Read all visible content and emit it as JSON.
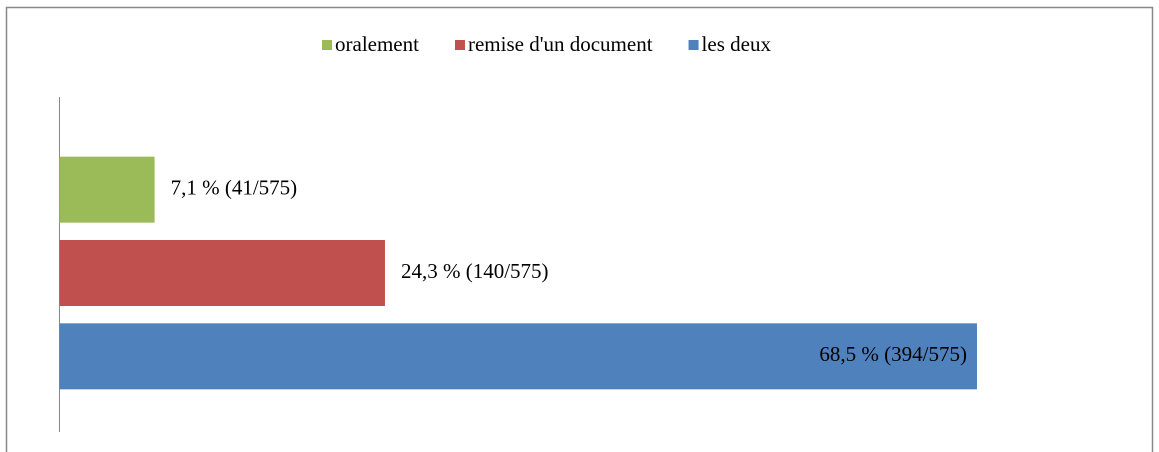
{
  "chart_data": {
    "type": "bar",
    "orientation": "horizontal",
    "series": [
      {
        "name": "oralement",
        "color": "#9bbb59",
        "values": [
          7.1
        ],
        "value_labels": [
          "7,1 % (41/575)"
        ]
      },
      {
        "name": "remise d'un document",
        "color": "#c0504d",
        "values": [
          24.3
        ],
        "value_labels": [
          "24,3 % (140/575)"
        ]
      },
      {
        "name": "les deux",
        "color": "#4f81bd",
        "values": [
          68.5
        ],
        "value_labels": [
          "68,5 % (394/575)"
        ]
      }
    ],
    "xlim": [
      0,
      80
    ],
    "legend": "top"
  }
}
